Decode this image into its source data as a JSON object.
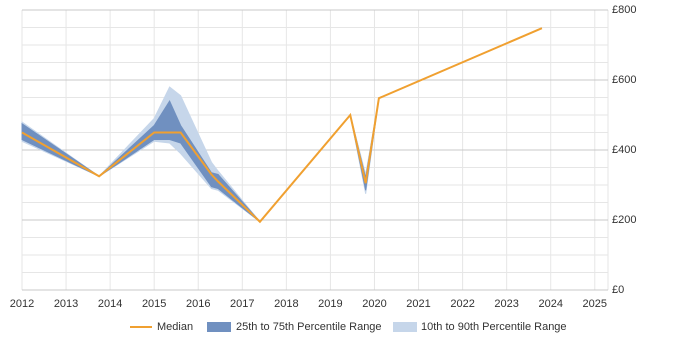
{
  "chart_data": {
    "type": "range-line",
    "x": [
      2012,
      2013.75,
      2015,
      2015.35,
      2015.6,
      2016.3,
      2016.45,
      2017.4,
      2019.45,
      2019.8,
      2020.1,
      2023.8
    ],
    "series": [
      {
        "name": "Median",
        "color": "#f0a030",
        "values": [
          450,
          325,
          450,
          450,
          450,
          330,
          310,
          195,
          500,
          305,
          548,
          748
        ]
      },
      {
        "name": "25th to 75th Percentile Range",
        "color": "#7090c0",
        "lower": [
          430,
          325,
          430,
          430,
          420,
          295,
          290,
          195,
          500,
          285,
          548,
          748
        ],
        "upper": [
          475,
          325,
          470,
          540,
          470,
          335,
          330,
          195,
          500,
          320,
          548,
          748
        ]
      },
      {
        "name": "10th to 90th Percentile Range",
        "color": "#c6d6ea",
        "lower": [
          425,
          325,
          425,
          420,
          390,
          290,
          285,
          195,
          500,
          275,
          548,
          748
        ],
        "upper": [
          480,
          325,
          490,
          580,
          555,
          365,
          340,
          195,
          500,
          330,
          548,
          748
        ]
      }
    ],
    "xlim": [
      2012,
      2025.3
    ],
    "xticks": [
      2012,
      2013,
      2014,
      2015,
      2016,
      2017,
      2018,
      2019,
      2020,
      2021,
      2022,
      2023,
      2024,
      2025
    ],
    "ylim": [
      0,
      800
    ],
    "yticks": [
      {
        "value": 0,
        "label": "£0"
      },
      {
        "value": 200,
        "label": "£200"
      },
      {
        "value": 400,
        "label": "£400"
      },
      {
        "value": 600,
        "label": "£600"
      },
      {
        "value": 800,
        "label": "£800"
      }
    ],
    "grid": true,
    "legend": "bottom"
  }
}
